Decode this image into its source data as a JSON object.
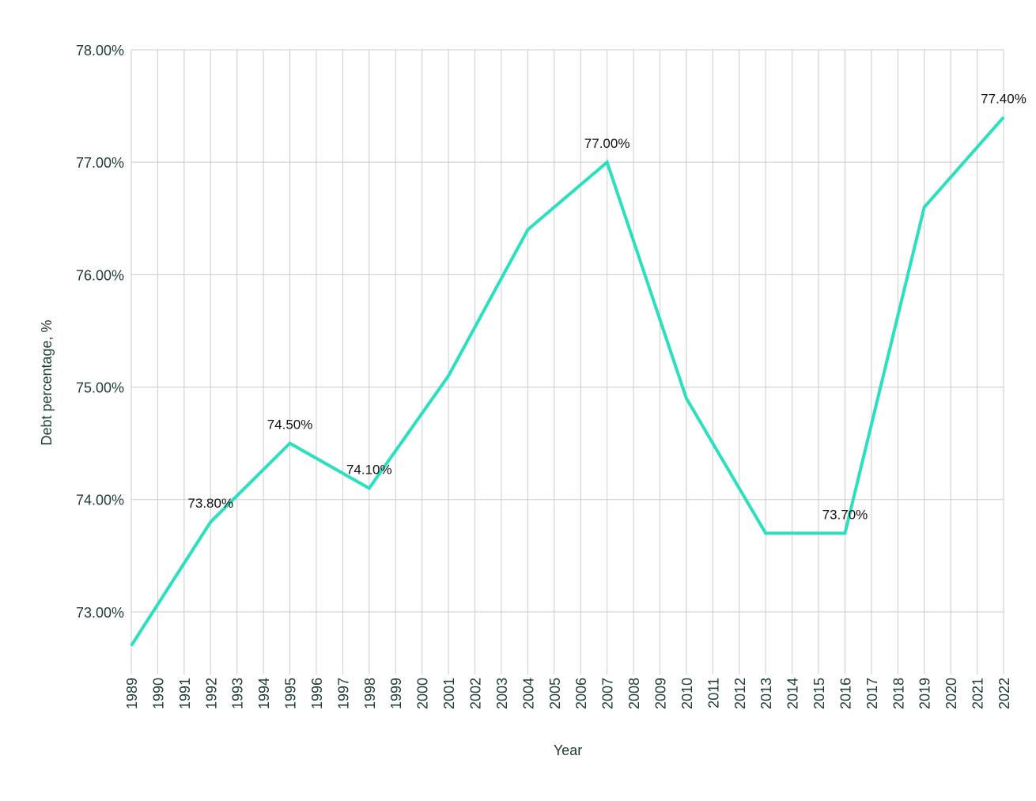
{
  "chart_data": {
    "type": "line",
    "title": "",
    "xlabel": "Year",
    "ylabel": "Debt percentage, %",
    "xlim": [
      1989,
      2022
    ],
    "ylim": [
      72.5,
      78
    ],
    "y_ticks": [
      73,
      74,
      75,
      76,
      77,
      78
    ],
    "y_tick_labels": [
      "73.00%",
      "74.00%",
      "75.00%",
      "76.00%",
      "77.00%",
      "78.00%"
    ],
    "x_ticks": [
      "1989",
      "1990",
      "1991",
      "1992",
      "1993",
      "1994",
      "1995",
      "1996",
      "1997",
      "1998",
      "1999",
      "2000",
      "2001",
      "2002",
      "2003",
      "2004",
      "2005",
      "2006",
      "2007",
      "2008",
      "2009",
      "2010",
      "2011",
      "2012",
      "2013",
      "2014",
      "2015",
      "2016",
      "2017",
      "2018",
      "2019",
      "2020",
      "2021",
      "2022"
    ],
    "grid": true,
    "legend": "none",
    "line_color": "#2ae0bf",
    "series": [
      {
        "x": [
          1989,
          1992,
          1995,
          1998,
          2001,
          2004,
          2007,
          2010,
          2013,
          2016,
          2019,
          2022
        ],
        "y": [
          72.7,
          73.8,
          74.5,
          74.1,
          75.1,
          76.4,
          77.0,
          74.9,
          73.7,
          73.7,
          76.6,
          77.4
        ]
      }
    ],
    "data_labels": [
      {
        "x": 1992,
        "y": 73.8,
        "text": "73.80%"
      },
      {
        "x": 1995,
        "y": 74.5,
        "text": "74.50%"
      },
      {
        "x": 1998,
        "y": 74.1,
        "text": "74.10%"
      },
      {
        "x": 2007,
        "y": 77.0,
        "text": "77.00%"
      },
      {
        "x": 2016,
        "y": 73.7,
        "text": "73.70%"
      },
      {
        "x": 2022,
        "y": 77.4,
        "text": "77.40%"
      }
    ]
  }
}
